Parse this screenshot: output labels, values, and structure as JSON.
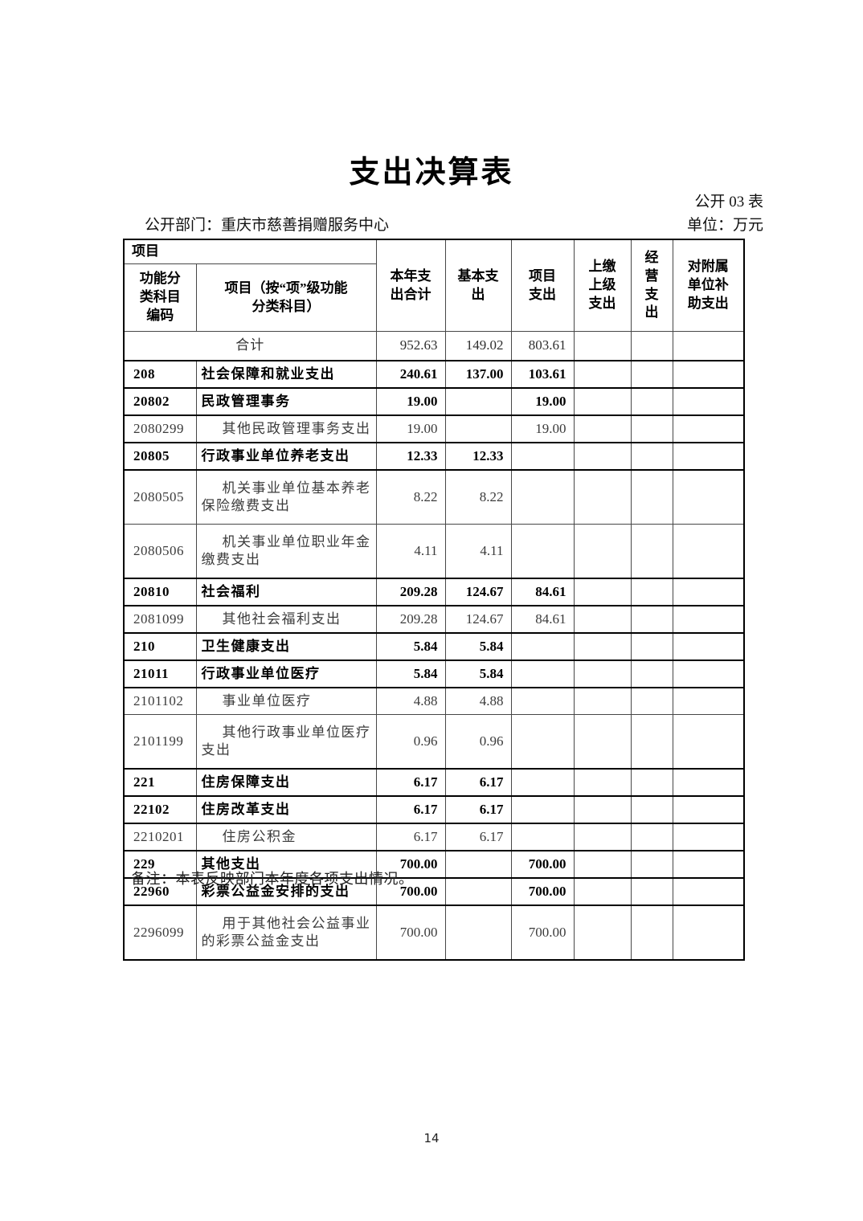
{
  "page": {
    "title": "支出决算表",
    "table_no": "公开 03 表",
    "dept_label": "公开部门：重庆市慈善捐赠服务中心",
    "unit_label": "单位：万元",
    "note": "备注：本表反映部门本年度各项支出情况。",
    "page_number": "14"
  },
  "table": {
    "header": {
      "group_label": "项目",
      "col_code": "功能分\n类科目\n编码",
      "col_name": "项目（按“项”级功能\n分类科目）",
      "col_total": "本年支\n出合计",
      "col_basic": "基本支\n出",
      "col_project": "项目\n支出",
      "col_upper": "上缴\n上级\n支出",
      "col_operating": "经\n营\n支\n出",
      "col_subsidy": "对附属\n单位补\n助支出"
    },
    "rows": [
      {
        "code": "",
        "name": "合计",
        "values": [
          "952.63",
          "149.02",
          "803.61",
          "",
          "",
          ""
        ],
        "level": "total"
      },
      {
        "code": "208",
        "name": "社会保障和就业支出",
        "values": [
          "240.61",
          "137.00",
          "103.61",
          "",
          "",
          ""
        ],
        "level": "major"
      },
      {
        "code": "20802",
        "name": "民政管理事务",
        "values": [
          "19.00",
          "",
          "19.00",
          "",
          "",
          ""
        ],
        "level": "major"
      },
      {
        "code": "2080299",
        "name": "其他民政管理事务支出",
        "values": [
          "19.00",
          "",
          "19.00",
          "",
          "",
          ""
        ],
        "level": "detail"
      },
      {
        "code": "20805",
        "name": "行政事业单位养老支出",
        "values": [
          "12.33",
          "12.33",
          "",
          "",
          "",
          ""
        ],
        "level": "major"
      },
      {
        "code": "2080505",
        "name": "机关事业单位基本养老\n保险缴费支出",
        "values": [
          "8.22",
          "8.22",
          "",
          "",
          "",
          ""
        ],
        "level": "detail"
      },
      {
        "code": "2080506",
        "name": "机关事业单位职业年金\n缴费支出",
        "values": [
          "4.11",
          "4.11",
          "",
          "",
          "",
          ""
        ],
        "level": "detail"
      },
      {
        "code": "20810",
        "name": "社会福利",
        "values": [
          "209.28",
          "124.67",
          "84.61",
          "",
          "",
          ""
        ],
        "level": "major"
      },
      {
        "code": "2081099",
        "name": "其他社会福利支出",
        "values": [
          "209.28",
          "124.67",
          "84.61",
          "",
          "",
          ""
        ],
        "level": "detail"
      },
      {
        "code": "210",
        "name": "卫生健康支出",
        "values": [
          "5.84",
          "5.84",
          "",
          "",
          "",
          ""
        ],
        "level": "major"
      },
      {
        "code": "21011",
        "name": "行政事业单位医疗",
        "values": [
          "5.84",
          "5.84",
          "",
          "",
          "",
          ""
        ],
        "level": "major"
      },
      {
        "code": "2101102",
        "name": "事业单位医疗",
        "values": [
          "4.88",
          "4.88",
          "",
          "",
          "",
          ""
        ],
        "level": "detail"
      },
      {
        "code": "2101199",
        "name": "其他行政事业单位医疗\n支出",
        "values": [
          "0.96",
          "0.96",
          "",
          "",
          "",
          ""
        ],
        "level": "detail"
      },
      {
        "code": "221",
        "name": "住房保障支出",
        "values": [
          "6.17",
          "6.17",
          "",
          "",
          "",
          ""
        ],
        "level": "major"
      },
      {
        "code": "22102",
        "name": "住房改革支出",
        "values": [
          "6.17",
          "6.17",
          "",
          "",
          "",
          ""
        ],
        "level": "major"
      },
      {
        "code": "2210201",
        "name": "住房公积金",
        "values": [
          "6.17",
          "6.17",
          "",
          "",
          "",
          ""
        ],
        "level": "detail"
      },
      {
        "code": "229",
        "name": "其他支出",
        "values": [
          "700.00",
          "",
          "700.00",
          "",
          "",
          ""
        ],
        "level": "major"
      },
      {
        "code": "22960",
        "name": "彩票公益金安排的支出",
        "values": [
          "700.00",
          "",
          "700.00",
          "",
          "",
          ""
        ],
        "level": "major"
      },
      {
        "code": "2296099",
        "name": "用于其他社会公益事业\n的彩票公益金支出",
        "values": [
          "700.00",
          "",
          "700.00",
          "",
          "",
          ""
        ],
        "level": "detail"
      }
    ]
  }
}
